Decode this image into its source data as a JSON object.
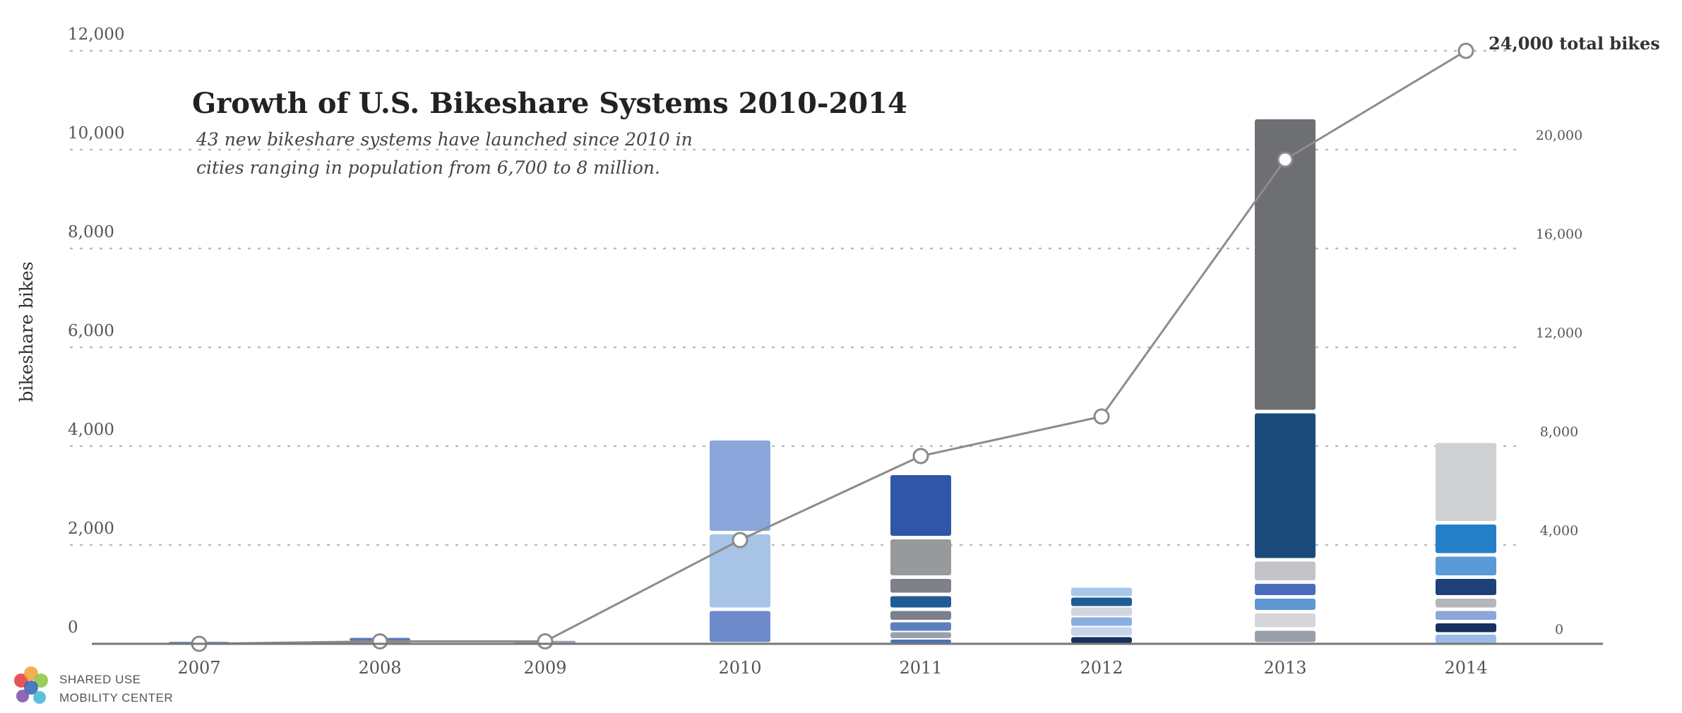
{
  "chart_data": {
    "type": "bar",
    "title": "Growth of U.S. Bikeshare Systems 2010-2014",
    "subtitle": [
      "43 new bikeshare systems have launched since 2010 in",
      "cities ranging in population from 6,700 to 8 million."
    ],
    "ylabel": "bikeshare bikes",
    "categories": [
      "2007",
      "2008",
      "2009",
      "2010",
      "2011",
      "2012",
      "2013",
      "2014"
    ],
    "ylim": [
      0,
      12000
    ],
    "yticks": [
      0,
      2000,
      4000,
      6000,
      8000,
      10000,
      12000
    ],
    "ytick_labels": [
      "0",
      "2,000",
      "4,000",
      "6,000",
      "8,000",
      "10,000",
      "12,000"
    ],
    "y2lim": [
      0,
      24000
    ],
    "y2ticks": [
      0,
      4000,
      8000,
      12000,
      16000,
      20000
    ],
    "y2tick_labels": [
      "0",
      "4,000",
      "8,000",
      "12,000",
      "16,000",
      "20,000"
    ],
    "grid": "dotted horizontal",
    "stacked_bars": [
      {
        "year": "2007",
        "segments": [
          {
            "value": 40,
            "color": "#5a7ab5"
          }
        ]
      },
      {
        "year": "2008",
        "segments": [
          {
            "value": 60,
            "color": "#9aa2b2"
          },
          {
            "value": 60,
            "color": "#5a7ab5"
          }
        ]
      },
      {
        "year": "2009",
        "segments": [
          {
            "value": 60,
            "color": "#9aa2b2"
          }
        ]
      },
      {
        "year": "2010",
        "segments": [
          {
            "value": 700,
            "color": "#6e8bcb"
          },
          {
            "value": 1550,
            "color": "#a7c3e6"
          },
          {
            "value": 1900,
            "color": "#8aa6da"
          }
        ]
      },
      {
        "year": "2011",
        "segments": [
          {
            "value": 100,
            "color": "#4a72b5"
          },
          {
            "value": 150,
            "color": "#9aa0ab"
          },
          {
            "value": 200,
            "color": "#5d7fc0"
          },
          {
            "value": 250,
            "color": "#7c808a"
          },
          {
            "value": 300,
            "color": "#1f5c96"
          },
          {
            "value": 350,
            "color": "#7e8188"
          },
          {
            "value": 800,
            "color": "#97999d"
          },
          {
            "value": 1300,
            "color": "#2f56a8"
          }
        ]
      },
      {
        "year": "2012",
        "segments": [
          {
            "value": 150,
            "color": "#16315f"
          },
          {
            "value": 200,
            "color": "#c5d5ea"
          },
          {
            "value": 200,
            "color": "#8aaee0"
          },
          {
            "value": 200,
            "color": "#d1d5dc"
          },
          {
            "value": 200,
            "color": "#1f5c96"
          },
          {
            "value": 200,
            "color": "#a7c7ea"
          }
        ]
      },
      {
        "year": "2013",
        "segments": [
          {
            "value": 300,
            "color": "#9aa0ab"
          },
          {
            "value": 350,
            "color": "#d4d6da"
          },
          {
            "value": 300,
            "color": "#5e99d4"
          },
          {
            "value": 300,
            "color": "#4a6cbd"
          },
          {
            "value": 450,
            "color": "#c2c4c8"
          },
          {
            "value": 3000,
            "color": "#1b4b7a"
          },
          {
            "value": 5950,
            "color": "#6d6f73"
          }
        ]
      },
      {
        "year": "2014",
        "segments": [
          {
            "value": 200,
            "color": "#9bbbe6"
          },
          {
            "value": 250,
            "color": "#16315f"
          },
          {
            "value": 250,
            "color": "#8aa6da"
          },
          {
            "value": 250,
            "color": "#b4b6ba"
          },
          {
            "value": 400,
            "color": "#1d3f7a"
          },
          {
            "value": 450,
            "color": "#5a9ad8"
          },
          {
            "value": 650,
            "color": "#2680c8"
          },
          {
            "value": 1650,
            "color": "#d0d1d3"
          }
        ]
      }
    ],
    "line_series": {
      "axis": "right",
      "values": [
        0,
        100,
        100,
        4200,
        7600,
        9200,
        19600,
        24000
      ],
      "color": "#8c8c8c",
      "end_label": "24,000 total bikes"
    }
  },
  "logo": {
    "line1": "SHARED USE",
    "line2": "MOBILITY CENTER",
    "colors": [
      "#e0373a",
      "#f0a133",
      "#8cc63e",
      "#2e64b5",
      "#7a4fa3",
      "#3fb4d6"
    ]
  }
}
